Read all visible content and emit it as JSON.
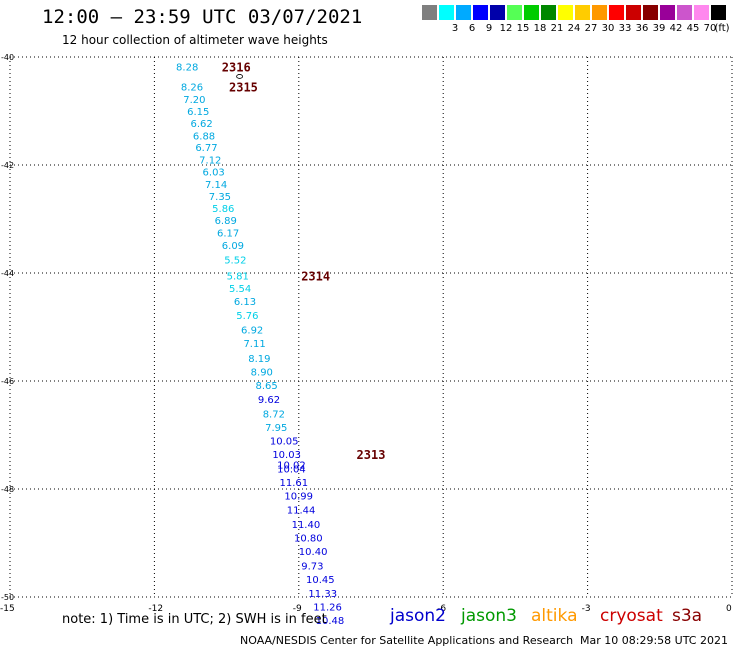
{
  "header": {
    "title": "12:00 — 23:59 UTC 03/07/2021",
    "subtitle": "12 hour collection of altimeter wave heights"
  },
  "legend": {
    "unit": "(ft)",
    "scale": [
      {
        "label": "",
        "color": "#7f7f7f"
      },
      {
        "label": "3",
        "color": "#00ffff"
      },
      {
        "label": "6",
        "color": "#00aaff"
      },
      {
        "label": "9",
        "color": "#0000ff"
      },
      {
        "label": "12",
        "color": "#0000aa"
      },
      {
        "label": "15",
        "color": "#55ff55"
      },
      {
        "label": "18",
        "color": "#00cc00"
      },
      {
        "label": "21",
        "color": "#008800"
      },
      {
        "label": "24",
        "color": "#ffff00"
      },
      {
        "label": "27",
        "color": "#ffcc00"
      },
      {
        "label": "30",
        "color": "#ff9900"
      },
      {
        "label": "33",
        "color": "#ff0000"
      },
      {
        "label": "36",
        "color": "#cc0000"
      },
      {
        "label": "39",
        "color": "#880000"
      },
      {
        "label": "42",
        "color": "#990099"
      },
      {
        "label": "45",
        "color": "#cc55cc"
      },
      {
        "label": "70",
        "color": "#ff88ee"
      },
      {
        "label": "",
        "color": "#000000"
      }
    ]
  },
  "axes": {
    "lat_labels": [
      "-40",
      "-42",
      "-44",
      "-46",
      "-48",
      "-50"
    ],
    "lon_labels": [
      "-15",
      "-12",
      "-9",
      "-6",
      "-3",
      "0"
    ],
    "lat_values": [
      -40,
      -42,
      -44,
      -46,
      -48,
      -50
    ],
    "lon_values": [
      -15,
      -12,
      -9,
      -6,
      -3,
      0
    ]
  },
  "track": {
    "pass_labels": [
      {
        "text": "2316",
        "lat": -40.18,
        "lon": -10.6
      },
      {
        "text": "2315",
        "lat": -40.55,
        "lon": -10.45
      },
      {
        "text": "2314",
        "lat": -44.05,
        "lon": -8.95
      },
      {
        "text": "2313",
        "lat": -47.35,
        "lon": -7.8
      }
    ],
    "observations": [
      {
        "text": "8.28",
        "lat": -40.18,
        "lon": -11.55
      },
      {
        "text": "8.26",
        "lat": -40.55,
        "lon": -11.45
      },
      {
        "text": "7.20",
        "lat": -40.78,
        "lon": -11.4
      },
      {
        "text": "6.15",
        "lat": -41.0,
        "lon": -11.32
      },
      {
        "text": "6.62",
        "lat": -41.22,
        "lon": -11.25
      },
      {
        "text": "6.88",
        "lat": -41.45,
        "lon": -11.2
      },
      {
        "text": "6.77",
        "lat": -41.67,
        "lon": -11.15
      },
      {
        "text": "7.12",
        "lat": -41.9,
        "lon": -11.07
      },
      {
        "text": "6.03",
        "lat": -42.12,
        "lon": -11.0
      },
      {
        "text": "7.14",
        "lat": -42.35,
        "lon": -10.95
      },
      {
        "text": "7.35",
        "lat": -42.57,
        "lon": -10.87
      },
      {
        "text": "5.86",
        "lat": -42.8,
        "lon": -10.8
      },
      {
        "text": "6.89",
        "lat": -43.02,
        "lon": -10.75
      },
      {
        "text": "6.17",
        "lat": -43.25,
        "lon": -10.7
      },
      {
        "text": "6.09",
        "lat": -43.48,
        "lon": -10.6
      },
      {
        "text": "5.52",
        "lat": -43.75,
        "lon": -10.55
      },
      {
        "text": "5.81",
        "lat": -44.05,
        "lon": -10.5
      },
      {
        "text": "5.54",
        "lat": -44.28,
        "lon": -10.45
      },
      {
        "text": "6.13",
        "lat": -44.52,
        "lon": -10.35
      },
      {
        "text": "5.76",
        "lat": -44.78,
        "lon": -10.3
      },
      {
        "text": "6.92",
        "lat": -45.05,
        "lon": -10.2
      },
      {
        "text": "7.11",
        "lat": -45.3,
        "lon": -10.15
      },
      {
        "text": "8.19",
        "lat": -45.57,
        "lon": -10.05
      },
      {
        "text": "8.90",
        "lat": -45.82,
        "lon": -10.0
      },
      {
        "text": "8.65",
        "lat": -46.07,
        "lon": -9.9
      },
      {
        "text": "9.62",
        "lat": -46.33,
        "lon": -9.85
      },
      {
        "text": "8.72",
        "lat": -46.6,
        "lon": -9.75
      },
      {
        "text": "7.95",
        "lat": -46.85,
        "lon": -9.7
      },
      {
        "text": "10.05",
        "lat": -47.1,
        "lon": -9.6
      },
      {
        "text": "10.03",
        "lat": -47.35,
        "lon": -9.55
      },
      {
        "text": "10.02",
        "lat": -47.55,
        "lon": -9.45
      },
      {
        "text": "10.04",
        "lat": -47.62,
        "lon": -9.45
      },
      {
        "text": "11.61",
        "lat": -47.87,
        "lon": -9.4
      },
      {
        "text": "10.99",
        "lat": -48.12,
        "lon": -9.3
      },
      {
        "text": "11.44",
        "lat": -48.38,
        "lon": -9.25
      },
      {
        "text": "11.40",
        "lat": -48.65,
        "lon": -9.15
      },
      {
        "text": "10.80",
        "lat": -48.9,
        "lon": -9.1
      },
      {
        "text": "10.40",
        "lat": -49.15,
        "lon": -9.0
      },
      {
        "text": "9.73",
        "lat": -49.42,
        "lon": -8.95
      },
      {
        "text": "10.45",
        "lat": -49.67,
        "lon": -8.85
      },
      {
        "text": "11.33",
        "lat": -49.93,
        "lon": -8.8
      },
      {
        "text": "11.26",
        "lat": -50.18,
        "lon": -8.7
      },
      {
        "text": "10.48",
        "lat": -50.43,
        "lon": -8.65
      }
    ]
  },
  "footer": {
    "note": "note:  1) Time is in UTC;  2) SWH is in feet",
    "satellites": [
      {
        "name": "jason2",
        "color": "#0000cc"
      },
      {
        "name": "jason3",
        "color": "#009900"
      },
      {
        "name": "altika",
        "color": "#ff9900"
      },
      {
        "name": "cryosat",
        "color": "#cc0000"
      },
      {
        "name": "s3a",
        "color": "#880000"
      }
    ],
    "credit": "NOAA/NESDIS Center for Satellite Applications and Research",
    "timestamp": "Mar 10 08:29:58 UTC 2021"
  },
  "colors": {
    "pass_label": "#660000",
    "grid": "#000000"
  }
}
